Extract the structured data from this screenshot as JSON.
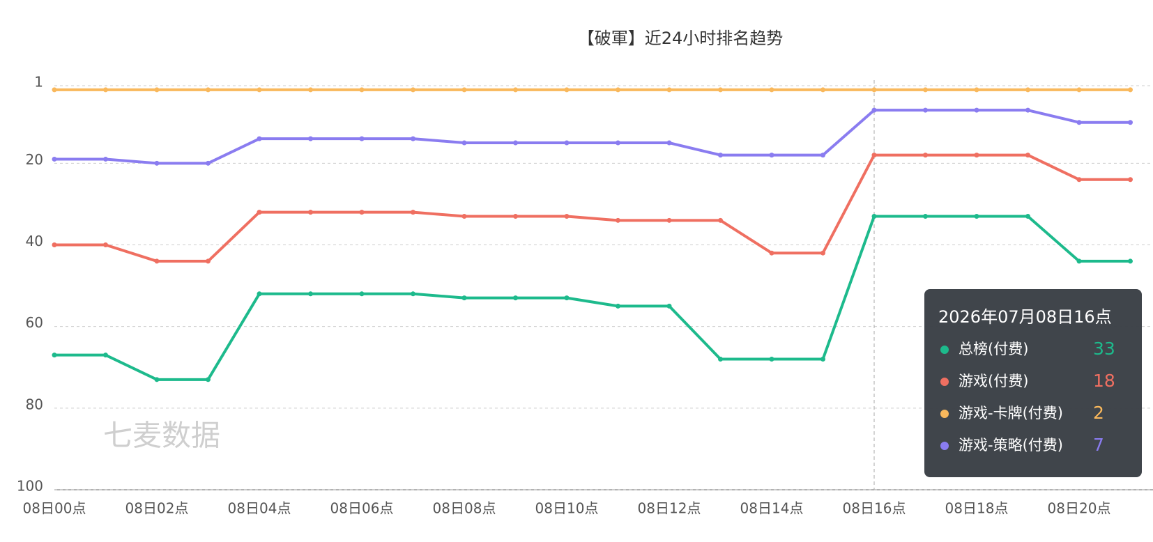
{
  "chart_data": {
    "type": "line",
    "title": "【破軍】近24小时排名趋势",
    "watermark": "七麦数据",
    "categories": [
      "08日00点",
      null,
      "08日02点",
      null,
      "08日04点",
      null,
      "08日06点",
      null,
      "08日08点",
      null,
      "08日10点",
      null,
      "08日12点",
      null,
      "08日14点",
      null,
      "08日16点",
      null,
      "08日18点",
      null,
      "08日20点",
      null
    ],
    "ylim": [
      1,
      100
    ],
    "y_inverted": true,
    "yticks": [
      1,
      20,
      40,
      60,
      80,
      100
    ],
    "grid": true,
    "series": [
      {
        "name": "总榜(付费)",
        "color": "#1dba8c",
        "values": [
          67,
          67,
          73,
          73,
          52,
          52,
          52,
          52,
          53,
          53,
          53,
          55,
          55,
          68,
          68,
          68,
          33,
          33,
          33,
          33,
          44,
          44
        ]
      },
      {
        "name": "游戏(付费)",
        "color": "#ef6f61",
        "values": [
          40,
          40,
          44,
          44,
          32,
          32,
          32,
          32,
          33,
          33,
          33,
          34,
          34,
          34,
          42,
          42,
          18,
          18,
          18,
          18,
          24,
          24
        ]
      },
      {
        "name": "游戏-卡牌(付费)",
        "color": "#f9b85c",
        "values": [
          2,
          2,
          2,
          2,
          2,
          2,
          2,
          2,
          2,
          2,
          2,
          2,
          2,
          2,
          2,
          2,
          2,
          2,
          2,
          2,
          2,
          2
        ]
      },
      {
        "name": "游戏-策略(付费)",
        "color": "#8a7cf0",
        "values": [
          19,
          19,
          20,
          20,
          14,
          14,
          14,
          14,
          15,
          15,
          15,
          15,
          15,
          18,
          18,
          18,
          7,
          7,
          7,
          7,
          10,
          10
        ]
      }
    ],
    "tooltip": {
      "title": "2026年07月08日16点",
      "index": 16
    }
  }
}
